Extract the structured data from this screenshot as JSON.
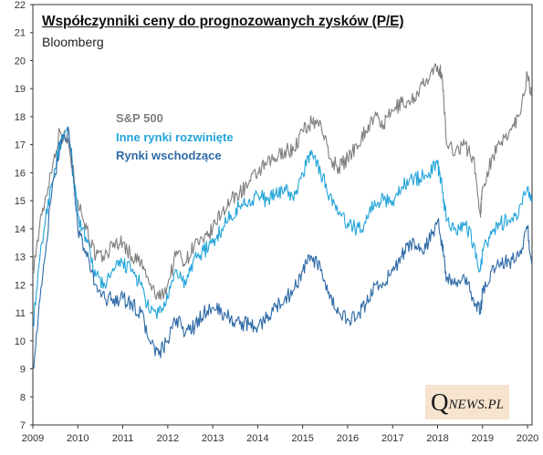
{
  "chart_data": {
    "type": "line",
    "title": "Współczynniki ceny do prognozowanych zysków (P/E)",
    "subtitle": "Bloomberg",
    "xlabel": "",
    "ylabel": "",
    "xlim": [
      2009,
      2020.1
    ],
    "ylim": [
      7,
      22
    ],
    "yticks": [
      7,
      8,
      9,
      10,
      11,
      12,
      13,
      14,
      15,
      16,
      17,
      18,
      19,
      20,
      21,
      22
    ],
    "xticks": [
      "2009",
      "2010",
      "2011",
      "2012",
      "2013",
      "2014",
      "2015",
      "2016",
      "2017",
      "2018",
      "2019",
      "2020"
    ],
    "grid": false,
    "legend": "top-left",
    "series": [
      {
        "name": "S&P 500",
        "color": "#7f7f7f",
        "x": [
          2009.0,
          2009.2,
          2009.4,
          2009.6,
          2009.8,
          2010.0,
          2010.2,
          2010.4,
          2010.6,
          2010.8,
          2011.0,
          2011.2,
          2011.4,
          2011.6,
          2011.8,
          2012.0,
          2012.2,
          2012.4,
          2012.6,
          2012.8,
          2013.0,
          2013.2,
          2013.4,
          2013.6,
          2013.8,
          2014.0,
          2014.2,
          2014.4,
          2014.6,
          2014.8,
          2015.0,
          2015.2,
          2015.4,
          2015.6,
          2015.8,
          2016.0,
          2016.2,
          2016.4,
          2016.6,
          2016.8,
          2017.0,
          2017.2,
          2017.4,
          2017.6,
          2017.8,
          2018.0,
          2018.1,
          2018.2,
          2018.4,
          2018.6,
          2018.8,
          2018.95,
          2019.0,
          2019.2,
          2019.4,
          2019.6,
          2019.8,
          2020.0,
          2020.1
        ],
        "values": [
          12.5,
          14.5,
          16.0,
          17.5,
          17.0,
          15.0,
          14.0,
          13.0,
          13.0,
          13.5,
          13.5,
          13.0,
          12.8,
          12.0,
          11.5,
          12.0,
          13.2,
          12.8,
          13.5,
          13.5,
          14.0,
          14.6,
          15.0,
          15.3,
          15.6,
          16.0,
          16.3,
          16.5,
          16.8,
          16.8,
          17.5,
          17.8,
          17.8,
          16.5,
          16.2,
          16.5,
          17.0,
          17.5,
          18.0,
          17.7,
          18.2,
          18.5,
          18.5,
          19.0,
          19.3,
          19.8,
          19.5,
          17.0,
          16.8,
          17.0,
          16.5,
          14.5,
          15.5,
          16.5,
          17.0,
          17.5,
          18.0,
          19.5,
          18.7
        ]
      },
      {
        "name": "Inne rynki rozwinięte",
        "color": "#22a4d9",
        "x": [
          2009.0,
          2009.2,
          2009.4,
          2009.6,
          2009.8,
          2010.0,
          2010.2,
          2010.4,
          2010.6,
          2010.8,
          2011.0,
          2011.2,
          2011.4,
          2011.6,
          2011.8,
          2012.0,
          2012.2,
          2012.4,
          2012.6,
          2012.8,
          2013.0,
          2013.2,
          2013.4,
          2013.6,
          2013.8,
          2014.0,
          2014.2,
          2014.4,
          2014.6,
          2014.8,
          2015.0,
          2015.2,
          2015.4,
          2015.6,
          2015.8,
          2016.0,
          2016.2,
          2016.4,
          2016.6,
          2016.8,
          2017.0,
          2017.2,
          2017.4,
          2017.6,
          2017.8,
          2018.0,
          2018.1,
          2018.2,
          2018.4,
          2018.6,
          2018.8,
          2018.95,
          2019.0,
          2019.2,
          2019.4,
          2019.6,
          2019.8,
          2020.0,
          2020.1
        ],
        "values": [
          10.5,
          13.5,
          15.5,
          17.0,
          17.5,
          14.5,
          13.5,
          12.3,
          12.0,
          12.5,
          12.8,
          12.5,
          12.0,
          11.0,
          11.0,
          11.5,
          12.5,
          12.0,
          13.0,
          13.2,
          13.5,
          14.0,
          14.5,
          14.8,
          15.0,
          15.2,
          15.0,
          15.2,
          15.5,
          15.0,
          16.0,
          16.8,
          16.0,
          15.2,
          14.5,
          14.2,
          14.0,
          14.2,
          15.0,
          15.0,
          15.0,
          15.5,
          15.8,
          15.8,
          16.0,
          16.3,
          15.5,
          14.3,
          14.0,
          14.2,
          13.5,
          12.5,
          13.2,
          13.8,
          14.2,
          14.3,
          14.5,
          15.5,
          15.0
        ]
      },
      {
        "name": "Rynki wschodzące",
        "color": "#2e6aa6",
        "x": [
          2009.0,
          2009.2,
          2009.4,
          2009.6,
          2009.8,
          2010.0,
          2010.2,
          2010.4,
          2010.6,
          2010.8,
          2011.0,
          2011.2,
          2011.4,
          2011.6,
          2011.8,
          2012.0,
          2012.2,
          2012.4,
          2012.6,
          2012.8,
          2013.0,
          2013.2,
          2013.4,
          2013.6,
          2013.8,
          2014.0,
          2014.2,
          2014.4,
          2014.6,
          2014.8,
          2015.0,
          2015.2,
          2015.4,
          2015.6,
          2015.8,
          2016.0,
          2016.2,
          2016.4,
          2016.6,
          2016.8,
          2017.0,
          2017.2,
          2017.4,
          2017.6,
          2017.8,
          2018.0,
          2018.1,
          2018.2,
          2018.4,
          2018.6,
          2018.8,
          2018.95,
          2019.0,
          2019.2,
          2019.4,
          2019.6,
          2019.8,
          2020.0,
          2020.1
        ],
        "values": [
          9.0,
          12.0,
          15.0,
          17.0,
          17.5,
          14.0,
          13.0,
          12.0,
          11.5,
          11.5,
          11.5,
          11.3,
          11.0,
          10.0,
          9.5,
          10.0,
          10.8,
          10.3,
          10.5,
          11.0,
          11.2,
          11.0,
          10.8,
          10.6,
          10.6,
          10.5,
          10.8,
          11.2,
          11.5,
          11.8,
          12.5,
          13.0,
          12.5,
          11.5,
          11.0,
          10.8,
          10.8,
          11.3,
          12.0,
          12.0,
          12.5,
          13.0,
          13.5,
          13.2,
          13.5,
          14.3,
          13.5,
          12.2,
          12.0,
          12.2,
          11.5,
          11.0,
          11.7,
          12.5,
          12.8,
          12.8,
          13.0,
          14.0,
          12.7
        ]
      }
    ]
  },
  "branding": {
    "logo_q": "Q",
    "logo_rest": "NEWS.PL"
  }
}
